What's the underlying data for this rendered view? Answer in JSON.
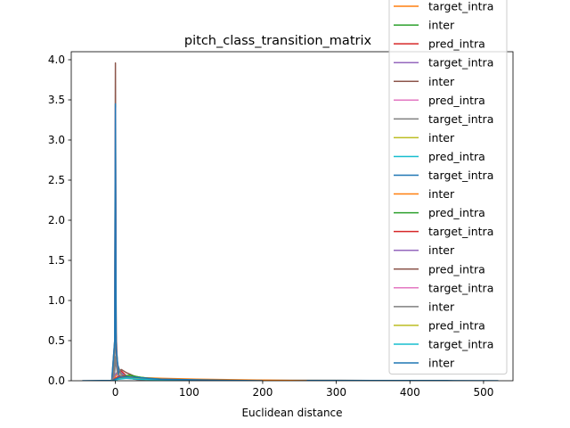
{
  "chart_data": {
    "type": "line",
    "title": "pitch_class_transition_matrix",
    "xlabel": "Euclidean distance",
    "ylabel": "",
    "xlim": [
      -60,
      540
    ],
    "ylim": [
      0,
      4.1
    ],
    "x_ticks": [
      0,
      100,
      200,
      300,
      400,
      500
    ],
    "y_ticks": [
      0.0,
      0.5,
      1.0,
      1.5,
      2.0,
      2.5,
      3.0,
      3.5,
      4.0
    ],
    "grid": false,
    "legend_position": "top-right",
    "series": [
      {
        "name": "target_intra",
        "color": "#ff7f0e",
        "x": [
          -5,
          0,
          3,
          8,
          15,
          30,
          60,
          120,
          200,
          300,
          420
        ],
        "y": [
          0,
          0.05,
          0.12,
          0.08,
          0.05,
          0.03,
          0.02,
          0.01,
          0.006,
          0.004,
          0
        ]
      },
      {
        "name": "inter",
        "color": "#2ca02c",
        "x": [
          -5,
          -1,
          0,
          1,
          3,
          10,
          20,
          35,
          60,
          120
        ],
        "y": [
          0,
          0.3,
          2.9,
          0.6,
          0.05,
          0.04,
          0.07,
          0.04,
          0.02,
          0
        ]
      },
      {
        "name": "pred_intra",
        "color": "#d62728",
        "x": [
          -5,
          -1,
          0,
          1,
          4,
          8,
          15,
          30,
          60
        ],
        "y": [
          0,
          0.2,
          2.8,
          0.4,
          0.1,
          0.12,
          0.06,
          0.03,
          0
        ]
      },
      {
        "name": "target_intra",
        "color": "#9467bd",
        "x": [
          -5,
          0,
          2,
          6,
          12,
          25,
          50,
          90
        ],
        "y": [
          0,
          0.08,
          0.1,
          0.11,
          0.07,
          0.04,
          0.02,
          0
        ]
      },
      {
        "name": "inter",
        "color": "#8c564b",
        "x": [
          -5,
          -1,
          0,
          1,
          3,
          8,
          15,
          30,
          60,
          100
        ],
        "y": [
          0,
          0.5,
          3.96,
          0.6,
          0.1,
          0.14,
          0.1,
          0.04,
          0.01,
          0
        ]
      },
      {
        "name": "pred_intra",
        "color": "#e377c2",
        "x": [
          -4,
          -1,
          0,
          1,
          3,
          8,
          20,
          40
        ],
        "y": [
          0,
          0.4,
          3.4,
          0.5,
          0.05,
          0.06,
          0.03,
          0
        ]
      },
      {
        "name": "target_intra",
        "color": "#7f7f7f",
        "x": [
          -4,
          -1,
          0,
          1,
          3,
          8,
          20,
          40
        ],
        "y": [
          0,
          0.3,
          2.15,
          0.35,
          0.2,
          0.08,
          0.03,
          0
        ]
      },
      {
        "name": "inter",
        "color": "#bcbd22",
        "x": [
          -5,
          0,
          5,
          15,
          22,
          35,
          60,
          120,
          200
        ],
        "y": [
          0,
          0.02,
          0.04,
          0.05,
          0.06,
          0.04,
          0.02,
          0.01,
          0
        ]
      },
      {
        "name": "pred_intra",
        "color": "#17becf",
        "x": [
          -5,
          0,
          5,
          15,
          30,
          60,
          100,
          150
        ],
        "y": [
          0,
          0.02,
          0.03,
          0.04,
          0.03,
          0.02,
          0.01,
          0
        ]
      },
      {
        "name": "target_intra",
        "color": "#1f77b4",
        "x": [
          -45,
          -5,
          -1,
          0,
          1,
          5,
          20,
          50,
          100,
          200,
          350,
          450,
          520
        ],
        "y": [
          0,
          0.005,
          0.5,
          3.45,
          0.4,
          0.05,
          0.04,
          0.02,
          0.01,
          0.005,
          0.003,
          0.002,
          0
        ]
      },
      {
        "name": "inter",
        "color": "#ff7f0e",
        "x": [
          -5,
          0,
          5,
          15,
          30,
          60,
          110,
          180,
          260
        ],
        "y": [
          0,
          0.02,
          0.03,
          0.05,
          0.04,
          0.03,
          0.02,
          0.01,
          0
        ]
      },
      {
        "name": "pred_intra",
        "color": "#2ca02c",
        "x": [
          -5,
          0,
          5,
          12,
          20,
          28,
          45,
          80,
          140
        ],
        "y": [
          0,
          0.02,
          0.04,
          0.06,
          0.07,
          0.05,
          0.03,
          0.01,
          0
        ]
      },
      {
        "name": "target_intra",
        "color": "#d62728",
        "x": [
          -5,
          0,
          4,
          10,
          20,
          40,
          80,
          140
        ],
        "y": [
          0,
          0.03,
          0.05,
          0.06,
          0.04,
          0.02,
          0.01,
          0
        ]
      },
      {
        "name": "inter",
        "color": "#9467bd",
        "x": [
          -5,
          0,
          5,
          15,
          30,
          60,
          100,
          160
        ],
        "y": [
          0,
          0.01,
          0.03,
          0.04,
          0.03,
          0.02,
          0.01,
          0
        ]
      },
      {
        "name": "pred_intra",
        "color": "#8c564b",
        "x": [
          -5,
          0,
          4,
          10,
          20,
          40,
          80,
          140
        ],
        "y": [
          0,
          0.02,
          0.04,
          0.05,
          0.04,
          0.02,
          0.01,
          0
        ]
      },
      {
        "name": "target_intra",
        "color": "#e377c2",
        "x": [
          -5,
          0,
          5,
          15,
          30,
          60,
          100
        ],
        "y": [
          0,
          0.01,
          0.03,
          0.03,
          0.02,
          0.01,
          0
        ]
      },
      {
        "name": "inter",
        "color": "#7f7f7f",
        "x": [
          -5,
          -1,
          0,
          1,
          3,
          10,
          25,
          60
        ],
        "y": [
          0,
          0.1,
          0.3,
          0.2,
          0.08,
          0.05,
          0.02,
          0
        ]
      },
      {
        "name": "pred_intra",
        "color": "#bcbd22",
        "x": [
          -5,
          0,
          5,
          15,
          25,
          50,
          100
        ],
        "y": [
          0,
          0.02,
          0.03,
          0.04,
          0.03,
          0.01,
          0
        ]
      },
      {
        "name": "target_intra",
        "color": "#17becf",
        "x": [
          -5,
          0,
          5,
          15,
          30,
          60,
          110
        ],
        "y": [
          0,
          0.01,
          0.02,
          0.03,
          0.02,
          0.01,
          0
        ]
      },
      {
        "name": "inter",
        "color": "#1f77b4",
        "x": [
          -5,
          0,
          5,
          15,
          30,
          60,
          120,
          200
        ],
        "y": [
          0,
          0.02,
          0.04,
          0.05,
          0.04,
          0.02,
          0.01,
          0
        ]
      }
    ]
  }
}
